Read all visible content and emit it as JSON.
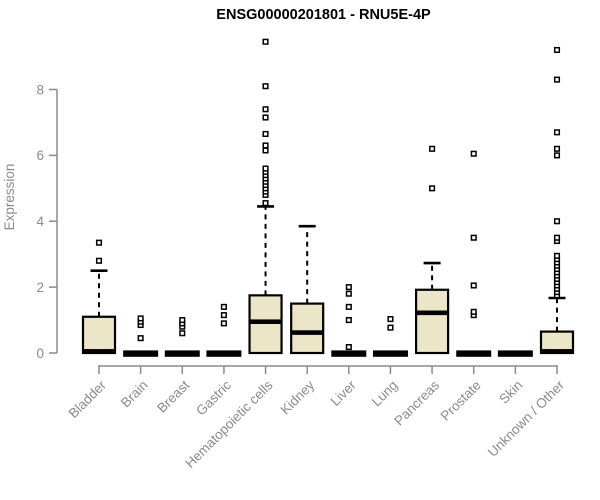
{
  "chart_data": {
    "type": "boxplot",
    "title": "ENSG00000201801 - RNU5E-4P",
    "ylabel": "Expression",
    "xlabel": "",
    "yticks": [
      0,
      2,
      4,
      6,
      8
    ],
    "ylim": [
      0,
      9.6
    ],
    "grid": false,
    "legend": "none",
    "categories": [
      "Bladder",
      "Brain",
      "Breast",
      "Gastric",
      "Hematopoietic cells",
      "Kidney",
      "Liver",
      "Lung",
      "Pancreas",
      "Prostate",
      "Skin",
      "Unknown / Other"
    ],
    "groups": [
      {
        "name": "Bladder",
        "q1": 0,
        "median": 0.05,
        "q3": 1.1,
        "whisker_low": 0,
        "whisker_high": 2.5,
        "outliers": [
          2.8,
          3.35
        ]
      },
      {
        "name": "Brain",
        "q1": 0,
        "median": 0.03,
        "q3": 0.07,
        "whisker_low": 0,
        "whisker_high": 0.07,
        "outliers": [
          0.45,
          0.85,
          0.95,
          1.05
        ]
      },
      {
        "name": "Breast",
        "q1": 0,
        "median": 0.03,
        "q3": 0.07,
        "whisker_low": 0,
        "whisker_high": 0.07,
        "outliers": [
          0.6,
          0.8,
          0.9,
          1.0
        ]
      },
      {
        "name": "Gastric",
        "q1": 0,
        "median": 0.03,
        "q3": 0.07,
        "whisker_low": 0,
        "whisker_high": 0.07,
        "outliers": [
          0.9,
          1.15,
          1.4
        ]
      },
      {
        "name": "Hematopoietic cells",
        "q1": 0,
        "median": 0.95,
        "q3": 1.75,
        "whisker_low": 0,
        "whisker_high": 4.45,
        "outliers": [
          4.55,
          4.8,
          4.9,
          5.0,
          5.1,
          5.2,
          5.3,
          5.4,
          5.5,
          5.6,
          6.15,
          6.3,
          6.65,
          7.15,
          7.4,
          8.1,
          9.45
        ]
      },
      {
        "name": "Kidney",
        "q1": 0,
        "median": 0.62,
        "q3": 1.5,
        "whisker_low": 0,
        "whisker_high": 3.85,
        "outliers": []
      },
      {
        "name": "Liver",
        "q1": 0,
        "median": 0.03,
        "q3": 0.07,
        "whisker_low": 0,
        "whisker_high": 0.07,
        "outliers": [
          0.18,
          1.0,
          1.4,
          1.8,
          2.0
        ]
      },
      {
        "name": "Lung",
        "q1": 0,
        "median": 0.03,
        "q3": 0.07,
        "whisker_low": 0,
        "whisker_high": 0.07,
        "outliers": [
          0.77,
          1.03
        ]
      },
      {
        "name": "Pancreas",
        "q1": 0,
        "median": 1.22,
        "q3": 1.92,
        "whisker_low": 0,
        "whisker_high": 2.73,
        "outliers": [
          5.0,
          6.2
        ]
      },
      {
        "name": "Prostate",
        "q1": 0,
        "median": 0.03,
        "q3": 0.07,
        "whisker_low": 0,
        "whisker_high": 0.07,
        "outliers": [
          1.15,
          1.25,
          2.05,
          3.5,
          6.05
        ]
      },
      {
        "name": "Skin",
        "q1": 0,
        "median": 0.03,
        "q3": 0.07,
        "whisker_low": 0,
        "whisker_high": 0.07,
        "outliers": []
      },
      {
        "name": "Unknown / Other",
        "q1": 0,
        "median": 0.05,
        "q3": 0.65,
        "whisker_low": 0,
        "whisker_high": 1.67,
        "outliers": [
          1.75,
          1.85,
          1.95,
          2.05,
          2.15,
          2.25,
          2.35,
          2.45,
          2.55,
          2.65,
          2.75,
          2.85,
          2.95,
          3.4,
          3.5,
          4.0,
          6.0,
          6.2,
          6.7,
          8.3,
          9.2
        ]
      }
    ],
    "colors": {
      "box_fill": "#ECE6C9",
      "box_stroke": "#000000",
      "median": "#000000",
      "whisker": "#000000",
      "outlier_stroke": "#000000",
      "outlier_fill": "#ffffff",
      "axis": "#8B8B8B",
      "tick_text": "#8B8B8B",
      "title_text": "#000000",
      "background": "#ffffff"
    }
  }
}
